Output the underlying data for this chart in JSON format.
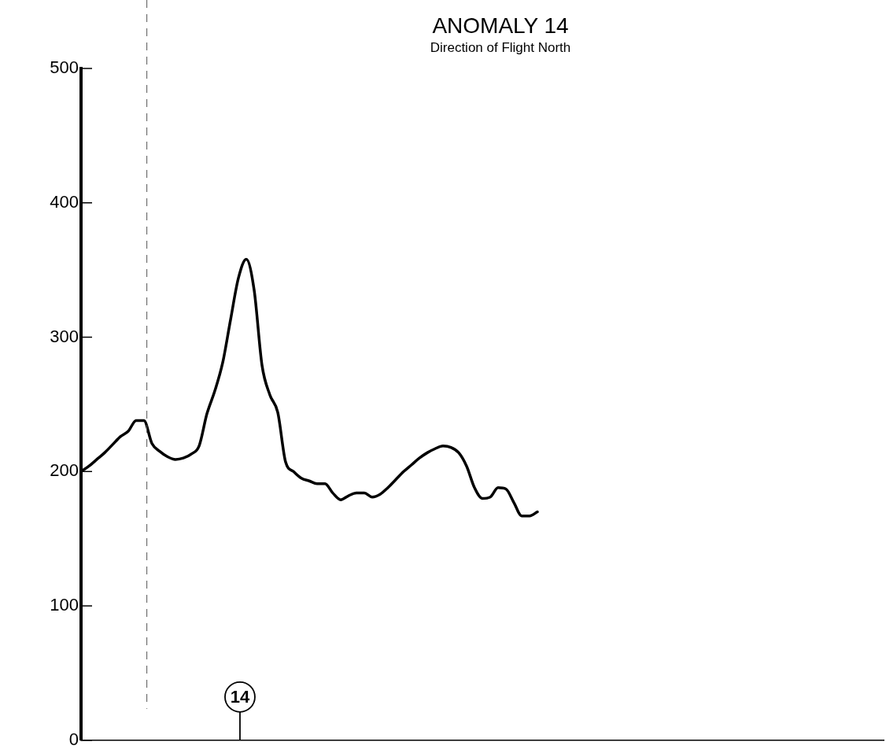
{
  "chart_data": {
    "type": "line",
    "title": "ANOMALY 14",
    "subtitle": "Direction of Flight North",
    "categories": [
      null,
      null,
      null,
      null,
      null,
      null,
      null,
      null,
      null,
      null,
      null,
      null,
      null,
      null,
      null,
      null,
      null,
      null,
      null,
      null,
      null,
      null,
      null,
      null,
      null,
      null,
      null,
      null,
      null,
      null,
      null,
      null,
      null,
      null,
      null,
      null,
      null,
      null,
      null,
      null,
      null,
      null,
      null,
      null,
      null,
      null,
      null,
      null,
      null,
      null,
      null,
      null,
      null,
      null,
      null,
      null,
      null,
      null,
      null,
      null,
      null,
      null,
      null,
      null,
      null,
      null,
      null,
      null,
      null,
      null,
      null,
      null,
      null,
      null,
      null,
      null,
      null,
      null,
      null,
      null,
      null,
      null,
      null,
      null,
      null,
      null,
      null,
      null,
      null,
      null,
      null,
      null,
      null,
      null,
      null,
      null,
      null,
      null,
      null,
      null,
      null,
      null,
      null
    ],
    "series": [
      {
        "color": "#000000",
        "values": [
          200,
          204,
          209,
          214,
          220,
          226,
          230,
          238,
          238,
          221,
          215,
          211,
          209,
          210,
          213,
          219,
          243,
          260,
          281,
          313,
          344,
          358,
          335,
          279,
          257,
          244,
          207,
          200,
          195,
          193,
          191,
          191,
          184,
          179,
          182,
          184,
          184,
          181,
          183,
          188,
          194,
          200,
          205,
          210,
          214,
          217,
          219,
          218,
          214,
          204,
          188,
          180,
          181,
          188,
          187,
          177,
          167,
          167,
          170,
          null,
          null,
          null,
          null,
          null,
          null,
          null,
          null,
          null,
          null,
          null,
          null,
          null,
          null,
          null,
          null,
          null,
          null,
          null,
          null,
          null,
          null,
          null,
          null,
          null,
          null,
          null,
          null,
          null,
          null,
          null,
          null,
          null,
          null,
          null,
          null,
          null,
          null,
          null,
          null,
          null,
          null,
          null,
          null
        ]
      }
    ],
    "ylim": [
      0,
      500
    ],
    "yticks": [
      0,
      100,
      200,
      300,
      400,
      500
    ],
    "grid": false,
    "legend": false,
    "marker": "none",
    "line_style": "solid",
    "tick_labels": "y",
    "annotations": [
      "14"
    ]
  }
}
